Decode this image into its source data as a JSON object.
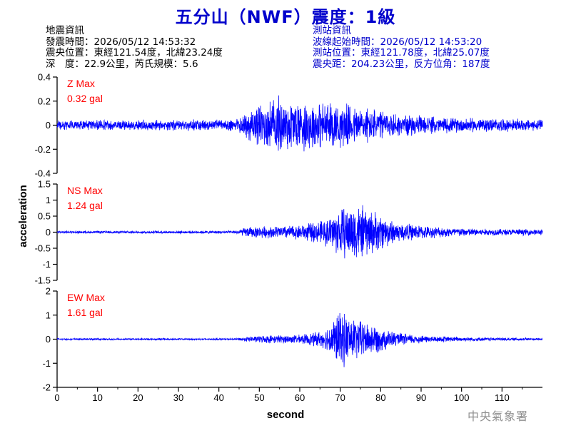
{
  "title": "五分山（NWF）震度：1級",
  "quake_info": {
    "heading": "地震資訊",
    "origin_time": "發震時間：2026/05/12 14:53:32",
    "epicenter": "震央位置：東經121.54度，北緯23.24度",
    "depth_magnitude": "深　度：22.9公里，芮氏規模：5.6"
  },
  "station_info": {
    "heading": "測站資訊",
    "wave_start": "波線起始時間：2026/05/12 14:53:20",
    "station_location": "測站位置：東經121.78度，北緯25.07度",
    "distance_azimuth": "震央距：204.23公里，反方位角：187度"
  },
  "footer": "中央氣象署",
  "colors": {
    "title": "#0000cc",
    "trace": "#0000ff",
    "max_label": "#ff0000",
    "axis": "#000000",
    "footer": "#909090"
  },
  "chart_data": {
    "type": "line",
    "xlabel": "second",
    "ylabel": "acceleration",
    "xlim": [
      0,
      120
    ],
    "x_ticks": [
      0,
      10,
      20,
      30,
      40,
      50,
      60,
      70,
      80,
      90,
      100,
      110
    ],
    "x_tick_labels": [
      "0",
      "10",
      "20",
      "30",
      "40",
      "50",
      "60",
      "70",
      "80",
      "90",
      "100",
      "110"
    ],
    "panels": [
      {
        "name": "Z",
        "max_title": "Z Max",
        "max_value": "0.32 gal",
        "ylim": [
          -0.4,
          0.4
        ],
        "y_ticks": [
          -0.4,
          -0.2,
          0,
          0.2,
          0.4
        ],
        "y_tick_labels": [
          "-0.4",
          "-0.2",
          "0",
          "0.2",
          "0.4"
        ],
        "envelope": [
          {
            "t": 0,
            "a": 0.045
          },
          {
            "t": 44,
            "a": 0.05
          },
          {
            "t": 46,
            "a": 0.11
          },
          {
            "t": 50,
            "a": 0.2
          },
          {
            "t": 55,
            "a": 0.27
          },
          {
            "t": 62,
            "a": 0.23
          },
          {
            "t": 70,
            "a": 0.2
          },
          {
            "t": 76,
            "a": 0.17
          },
          {
            "t": 85,
            "a": 0.1
          },
          {
            "t": 95,
            "a": 0.07
          },
          {
            "t": 120,
            "a": 0.05
          }
        ]
      },
      {
        "name": "NS",
        "max_title": "NS Max",
        "max_value": "1.24 gal",
        "ylim": [
          -1.5,
          1.5
        ],
        "y_ticks": [
          -1.5,
          -1,
          -0.5,
          0,
          0.5,
          1,
          1.5
        ],
        "y_tick_labels": [
          "-1.5",
          "-1",
          "-0.5",
          "0",
          "0.5",
          "1",
          "1.5"
        ],
        "envelope": [
          {
            "t": 0,
            "a": 0.04
          },
          {
            "t": 44,
            "a": 0.05
          },
          {
            "t": 47,
            "a": 0.18
          },
          {
            "t": 52,
            "a": 0.2
          },
          {
            "t": 60,
            "a": 0.25
          },
          {
            "t": 66,
            "a": 0.42
          },
          {
            "t": 70,
            "a": 0.85
          },
          {
            "t": 74,
            "a": 1.0
          },
          {
            "t": 78,
            "a": 0.75
          },
          {
            "t": 84,
            "a": 0.35
          },
          {
            "t": 92,
            "a": 0.2
          },
          {
            "t": 105,
            "a": 0.12
          },
          {
            "t": 120,
            "a": 0.1
          }
        ]
      },
      {
        "name": "EW",
        "max_title": "EW Max",
        "max_value": "1.61 gal",
        "ylim": [
          -2,
          2
        ],
        "y_ticks": [
          -2,
          -1,
          0,
          1,
          2
        ],
        "y_tick_labels": [
          "-2",
          "-1",
          "0",
          "1",
          "2"
        ],
        "envelope": [
          {
            "t": 0,
            "a": 0.04
          },
          {
            "t": 44,
            "a": 0.04
          },
          {
            "t": 47,
            "a": 0.12
          },
          {
            "t": 52,
            "a": 0.18
          },
          {
            "t": 60,
            "a": 0.2
          },
          {
            "t": 66,
            "a": 0.4
          },
          {
            "t": 70,
            "a": 1.3
          },
          {
            "t": 74,
            "a": 0.95
          },
          {
            "t": 78,
            "a": 0.7
          },
          {
            "t": 84,
            "a": 0.3
          },
          {
            "t": 92,
            "a": 0.15
          },
          {
            "t": 105,
            "a": 0.08
          },
          {
            "t": 120,
            "a": 0.06
          }
        ]
      }
    ]
  }
}
